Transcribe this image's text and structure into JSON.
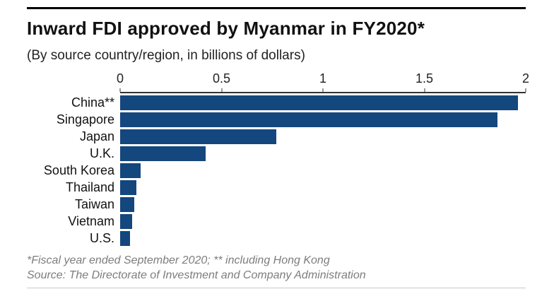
{
  "page": {
    "title": "Inward FDI approved by Myanmar in FY2020*",
    "subtitle": "(By source country/region, in billions of dollars)",
    "footnote": "*Fiscal year ended September 2020; ** including Hong Kong",
    "source": "Source: The Directorate of Investment and Company Administration"
  },
  "chart_data": {
    "type": "bar",
    "orientation": "horizontal",
    "title": "Inward FDI approved by Myanmar in FY2020*",
    "subtitle": "(By source country/region, in billions of dollars)",
    "categories": [
      "China**",
      "Singapore",
      "Japan",
      "U.K.",
      "South Korea",
      "Thailand",
      "Taiwan",
      "Vietnam",
      "U.S."
    ],
    "values": [
      1.96,
      1.86,
      0.77,
      0.42,
      0.1,
      0.08,
      0.07,
      0.06,
      0.05
    ],
    "xlabel": "",
    "ylabel": "",
    "xlim": [
      0,
      2
    ],
    "xticks": [
      0,
      0.5,
      1,
      1.5,
      2
    ],
    "unit": "billions of dollars",
    "grid": "off",
    "legend": "none",
    "bar_color": "#14477d",
    "axis_color": "#333333"
  }
}
